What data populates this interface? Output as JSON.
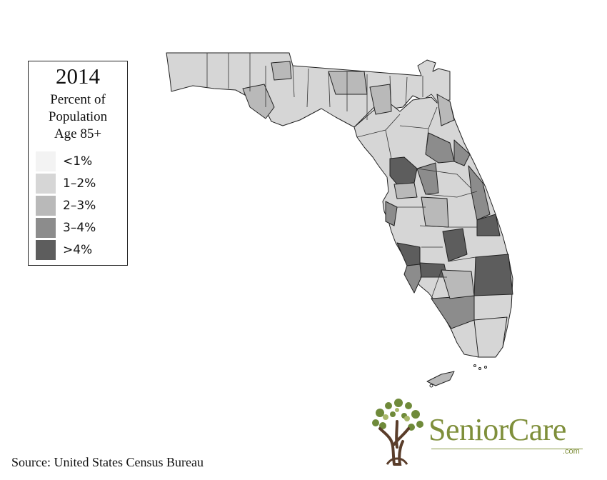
{
  "legend": {
    "year": "2014",
    "title_lines": [
      "Percent of",
      "Population",
      "Age 85+"
    ],
    "items": [
      {
        "label": "<1%",
        "color": "#f3f3f3"
      },
      {
        "label": "1–2%",
        "color": "#d6d6d6"
      },
      {
        "label": "2–3%",
        "color": "#b9b9b9"
      },
      {
        "label": "3–4%",
        "color": "#8c8c8c"
      },
      {
        "label": ">4%",
        "color": "#5d5d5d"
      }
    ]
  },
  "source": "Source: United States Census Bureau",
  "brand": {
    "name": "SeniorCare",
    "suffix": ".com",
    "color": "#7f8f3b",
    "icon": "tree-icon"
  },
  "map": {
    "region": "Florida counties",
    "outline_color": "#222222",
    "background": "#ffffff"
  }
}
